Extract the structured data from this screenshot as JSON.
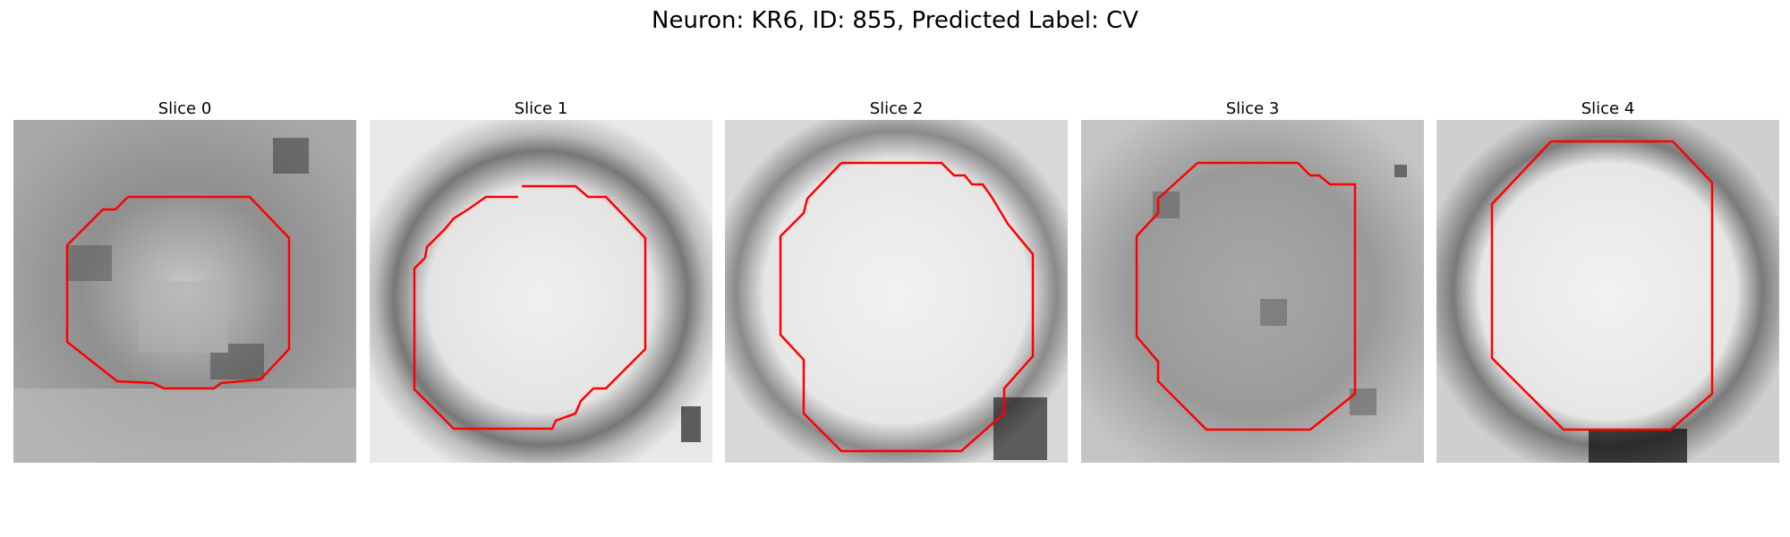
{
  "figure": {
    "title": "Neuron: KR6, ID: 855, Predicted Label: CV"
  },
  "panels": [
    {
      "label": "Slice 0"
    },
    {
      "label": "Slice 1"
    },
    {
      "label": "Slice 2"
    },
    {
      "label": "Slice 3"
    },
    {
      "label": "Slice 4"
    }
  ],
  "colors": {
    "contour": "#ff0000",
    "background": "#ffffff"
  }
}
